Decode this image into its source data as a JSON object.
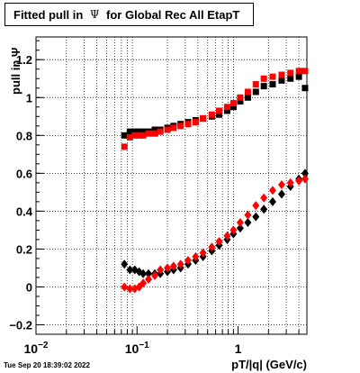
{
  "title": {
    "prefix": "Fitted pull in ",
    "symbol": "Ψ",
    "suffix": " for Global Rec All EtapT"
  },
  "timestamp": "Tue Sep 20 18:39:02 2022",
  "chart_data": {
    "type": "scatter",
    "title": "Fitted pull in Ψ for Global Rec All EtapT",
    "xlabel": "pT/|q| (GeV/c)",
    "ylabel": "pull in Ψ",
    "xscale": "log",
    "xlim": [
      0.01,
      4.8
    ],
    "ylim": [
      -0.25,
      1.32
    ],
    "grid": true,
    "xticks": [
      {
        "v": 0.01,
        "base": "10",
        "exp": "−2"
      },
      {
        "v": 0.1,
        "base": "10",
        "exp": "−1"
      },
      {
        "v": 1,
        "base": "1",
        "exp": ""
      }
    ],
    "yticks": [
      {
        "v": -0.2,
        "label": "−0.2"
      },
      {
        "v": 0,
        "label": "0"
      },
      {
        "v": 0.2,
        "label": "0.2"
      },
      {
        "v": 0.4,
        "label": "0.4"
      },
      {
        "v": 0.6,
        "label": "0.6"
      },
      {
        "v": 0.8,
        "label": "0.8"
      },
      {
        "v": 1,
        "label": "1"
      },
      {
        "v": 1.2,
        "label": "1.2"
      }
    ],
    "colors": {
      "black": "#000000",
      "red": "#ff0000"
    },
    "series": [
      {
        "color": "#000000",
        "marker": "square",
        "x": [
          0.075,
          0.085,
          0.095,
          0.105,
          0.115,
          0.13,
          0.15,
          0.17,
          0.2,
          0.23,
          0.27,
          0.32,
          0.38,
          0.45,
          0.55,
          0.65,
          0.78,
          0.9,
          1.05,
          1.25,
          1.5,
          1.8,
          2.2,
          2.7,
          3.3,
          4.0,
          4.6
        ],
        "y": [
          0.8,
          0.82,
          0.82,
          0.82,
          0.82,
          0.82,
          0.83,
          0.83,
          0.84,
          0.85,
          0.86,
          0.87,
          0.88,
          0.89,
          0.9,
          0.91,
          0.93,
          0.95,
          0.98,
          1.0,
          1.03,
          1.06,
          1.07,
          1.09,
          1.1,
          1.11,
          1.05
        ]
      },
      {
        "color": "#ff0000",
        "marker": "square",
        "x": [
          0.075,
          0.085,
          0.095,
          0.105,
          0.115,
          0.13,
          0.15,
          0.17,
          0.2,
          0.23,
          0.27,
          0.32,
          0.38,
          0.45,
          0.55,
          0.65,
          0.78,
          0.9,
          1.05,
          1.25,
          1.5,
          1.8,
          2.2,
          2.7,
          3.3,
          4.0,
          4.6
        ],
        "y": [
          0.74,
          0.79,
          0.8,
          0.8,
          0.8,
          0.81,
          0.81,
          0.82,
          0.83,
          0.84,
          0.85,
          0.86,
          0.87,
          0.89,
          0.91,
          0.93,
          0.95,
          0.97,
          1.0,
          1.03,
          1.07,
          1.1,
          1.11,
          1.12,
          1.13,
          1.14,
          1.14
        ]
      },
      {
        "color": "#000000",
        "marker": "diamond",
        "x": [
          0.075,
          0.085,
          0.095,
          0.105,
          0.115,
          0.13,
          0.15,
          0.17,
          0.2,
          0.23,
          0.27,
          0.32,
          0.38,
          0.45,
          0.55,
          0.65,
          0.78,
          0.9,
          1.05,
          1.25,
          1.5,
          1.8,
          2.2,
          2.7,
          3.3,
          4.0,
          4.6
        ],
        "y": [
          0.12,
          0.09,
          0.09,
          0.08,
          0.07,
          0.07,
          0.07,
          0.07,
          0.08,
          0.09,
          0.1,
          0.12,
          0.14,
          0.16,
          0.19,
          0.22,
          0.25,
          0.28,
          0.31,
          0.34,
          0.37,
          0.41,
          0.45,
          0.49,
          0.53,
          0.57,
          0.6
        ]
      },
      {
        "color": "#ff0000",
        "marker": "diamond",
        "x": [
          0.075,
          0.085,
          0.095,
          0.105,
          0.115,
          0.13,
          0.15,
          0.17,
          0.2,
          0.23,
          0.27,
          0.32,
          0.38,
          0.45,
          0.55,
          0.65,
          0.78,
          0.9,
          1.05,
          1.25,
          1.5,
          1.8,
          2.2,
          2.7,
          3.3,
          4.0,
          4.6
        ],
        "y": [
          0.0,
          -0.01,
          -0.01,
          0.0,
          0.02,
          0.04,
          0.06,
          0.09,
          0.1,
          0.11,
          0.12,
          0.14,
          0.16,
          0.18,
          0.21,
          0.24,
          0.27,
          0.3,
          0.34,
          0.38,
          0.43,
          0.47,
          0.51,
          0.54,
          0.55,
          0.56,
          0.57
        ]
      }
    ]
  }
}
